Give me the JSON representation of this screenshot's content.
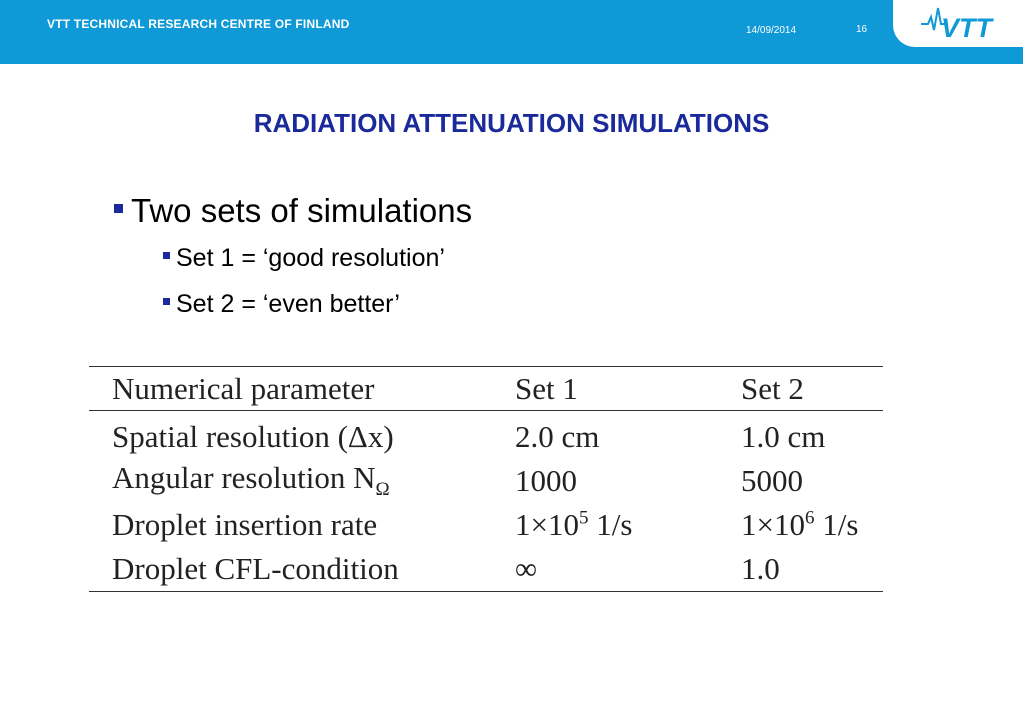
{
  "header": {
    "organization": "VTT TECHNICAL RESEARCH CENTRE OF FINLAND",
    "date": "14/09/2014",
    "slide_number": "16",
    "logo_text": "VTT",
    "colors": {
      "bar": "#0f99d6",
      "title": "#1b2a9b",
      "bullet_marker": "#1b2a9b"
    }
  },
  "slide": {
    "title": "RADIATION ATTENUATION SIMULATIONS",
    "bullets": [
      {
        "text": "Two sets of simulations",
        "level": 1
      },
      {
        "text": "Set 1 = ‘good resolution’",
        "level": 2
      },
      {
        "text": "Set 2 = ‘even better’",
        "level": 2
      }
    ]
  },
  "table": {
    "columns": [
      "Numerical parameter",
      "Set 1",
      "Set 2"
    ],
    "rows": [
      {
        "parameter": "Spatial resolution (Δx)",
        "set1": "2.0 cm",
        "set2": "1.0 cm"
      },
      {
        "parameter": "Angular resolution N",
        "parameter_sub": "Ω",
        "set1": "1000",
        "set2": "5000"
      },
      {
        "parameter": "Droplet insertion rate",
        "set1_base": "1×10",
        "set1_exp": "5",
        "set1_unit": " 1/s",
        "set2_base": "1×10",
        "set2_exp": "6",
        "set2_unit": " 1/s"
      },
      {
        "parameter": "Droplet CFL-condition",
        "set1": "∞",
        "set2": "1.0"
      }
    ]
  }
}
